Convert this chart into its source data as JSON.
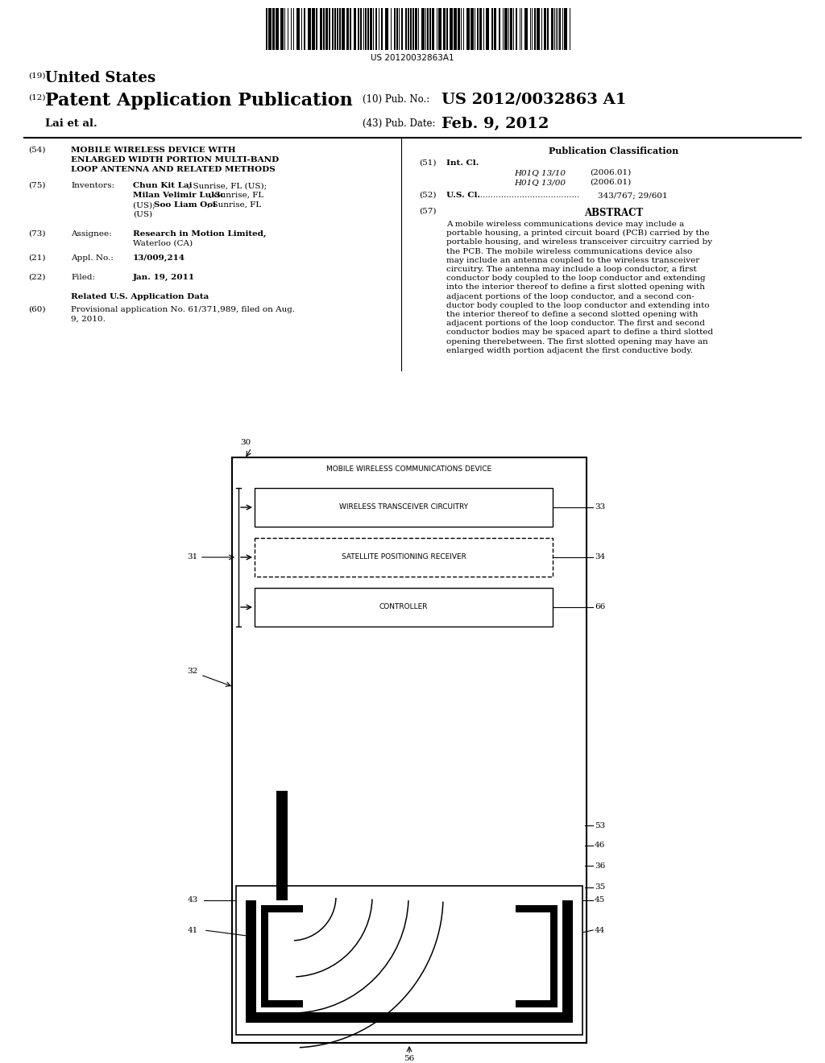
{
  "bg_color": "#ffffff",
  "barcode_text": "US 20120032863A1",
  "header_19": "(19)",
  "header_19_text": "United States",
  "header_12": "(12)",
  "header_12_text": "Patent Application Publication",
  "header_name": "Lai et al.",
  "header_10_label": "(10) Pub. No.:",
  "header_10_value": "US 2012/0032863 A1",
  "header_43_label": "(43) Pub. Date:",
  "header_43_value": "Feb. 9, 2012",
  "field54_num": "(54)",
  "field54_title1": "MOBILE WIRELESS DEVICE WITH",
  "field54_title2": "ENLARGED WIDTH PORTION MULTI-BAND",
  "field54_title3": "LOOP ANTENNA AND RELATED METHODS",
  "field75_num": "(75)",
  "field75_label": "Inventors:",
  "field73_num": "(73)",
  "field73_label": "Assignee:",
  "field21_num": "(21)",
  "field21_label": "Appl. No.:",
  "field21_value": "13/009,214",
  "field22_num": "(22)",
  "field22_label": "Filed:",
  "field22_value": "Jan. 19, 2011",
  "related_header": "Related U.S. Application Data",
  "field60_num": "(60)",
  "pub_class_header": "Publication Classification",
  "field51_num": "(51)",
  "field51_label": "Int. Cl.",
  "field51_class1": "H01Q 13/10",
  "field51_year1": "(2006.01)",
  "field51_class2": "H01Q 13/00",
  "field51_year2": "(2006.01)",
  "field52_num": "(52)",
  "field52_label": "U.S. Cl.",
  "field52_dots": "........................................",
  "field52_value": "343/767; 29/601",
  "field57_num": "(57)",
  "field57_label": "ABSTRACT",
  "abstract_lines": [
    "A mobile wireless communications device may include a",
    "portable housing, a printed circuit board (PCB) carried by the",
    "portable housing, and wireless transceiver circuitry carried by",
    "the PCB. The mobile wireless communications device also",
    "may include an antenna coupled to the wireless transceiver",
    "circuitry. The antenna may include a loop conductor, a first",
    "conductor body coupled to the loop conductor and extending",
    "into the interior thereof to define a first slotted opening with",
    "adjacent portions of the loop conductor, and a second con-",
    "ductor body coupled to the loop conductor and extending into",
    "the interior thereof to define a second slotted opening with",
    "adjacent portions of the loop conductor. The first and second",
    "conductor bodies may be spaced apart to define a third slotted",
    "opening therebetween. The first slotted opening may have an",
    "enlarged width portion adjacent the first conductive body."
  ],
  "diag_label_30": "30",
  "diag_label_31": "31",
  "diag_label_32": "32",
  "diag_label_33": "33",
  "diag_label_34": "34",
  "diag_label_35": "35",
  "diag_label_36": "36",
  "diag_label_41": "41",
  "diag_label_43": "43",
  "diag_label_44": "44",
  "diag_label_45": "45",
  "diag_label_46": "46",
  "diag_label_53": "53",
  "diag_label_56": "56",
  "diag_label_66": "66",
  "box1_label": "WIRELESS TRANSCEIVER CIRCUITRY",
  "box2_label": "SATELLITE POSITIONING RECEIVER",
  "box3_label": "CONTROLLER",
  "device_label": "MOBILE WIRELESS COMMUNICATIONS DEVICE"
}
